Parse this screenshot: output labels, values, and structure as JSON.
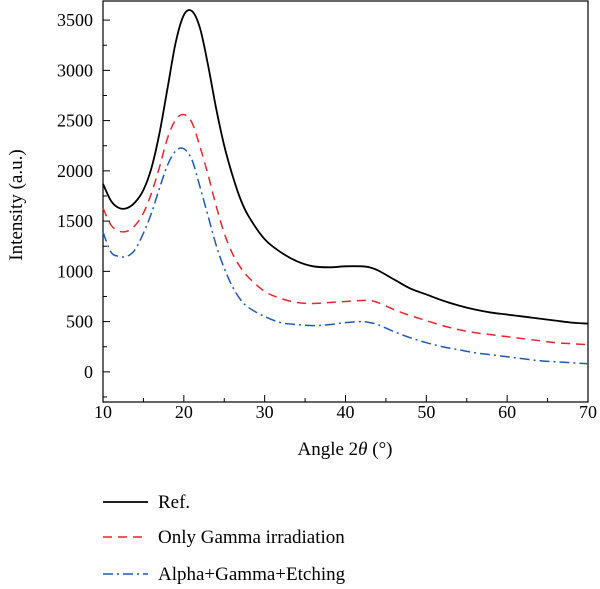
{
  "chart_data": {
    "type": "line",
    "xlabel_prefix": "Angle 2",
    "xlabel_symbol": "θ",
    "xlabel_suffix": " (°)",
    "ylabel": "Intensity (a.u.)",
    "xlim": [
      10,
      70
    ],
    "ylim": [
      -300,
      3700
    ],
    "x_ticks": [
      10,
      20,
      30,
      40,
      50,
      60,
      70
    ],
    "y_ticks": [
      0,
      500,
      1000,
      1500,
      2000,
      2500,
      3000,
      3500
    ],
    "grid": false,
    "legend_position": "below-plot",
    "series": [
      {
        "name": "Ref.",
        "color": "#000000",
        "dash": "solid",
        "x": [
          10,
          11,
          12,
          13,
          14,
          15,
          16,
          17,
          18,
          19,
          20,
          21,
          22,
          23,
          24,
          25,
          26,
          27,
          28,
          30,
          32,
          34,
          36,
          38,
          40,
          42,
          43,
          44,
          46,
          48,
          50,
          52,
          54,
          56,
          58,
          60,
          62,
          64,
          66,
          68,
          70
        ],
        "y": [
          1870,
          1700,
          1630,
          1630,
          1690,
          1810,
          2030,
          2380,
          2830,
          3280,
          3550,
          3590,
          3420,
          3050,
          2620,
          2250,
          1960,
          1720,
          1550,
          1320,
          1190,
          1100,
          1050,
          1040,
          1050,
          1050,
          1040,
          1010,
          920,
          830,
          770,
          710,
          660,
          620,
          590,
          570,
          550,
          530,
          510,
          490,
          480
        ]
      },
      {
        "name": "Only Gamma irradiation",
        "color": "#e8252a",
        "dash": "dashed",
        "x": [
          10,
          11,
          12,
          13,
          14,
          15,
          16,
          17,
          18,
          19,
          20,
          21,
          22,
          23,
          24,
          25,
          26,
          27,
          28,
          30,
          32,
          34,
          36,
          38,
          40,
          42,
          43,
          44,
          46,
          48,
          50,
          52,
          54,
          56,
          58,
          60,
          62,
          64,
          66,
          68,
          70
        ],
        "y": [
          1630,
          1460,
          1400,
          1400,
          1460,
          1580,
          1780,
          2040,
          2330,
          2510,
          2560,
          2480,
          2240,
          1960,
          1650,
          1380,
          1180,
          1040,
          940,
          800,
          730,
          690,
          680,
          690,
          700,
          710,
          710,
          690,
          620,
          560,
          510,
          460,
          420,
          390,
          370,
          350,
          330,
          310,
          290,
          280,
          270
        ]
      },
      {
        "name": "Alpha+Gamma+Etching",
        "color": "#1a5bb8",
        "dash": "dashdot",
        "x": [
          10,
          11,
          12,
          13,
          14,
          15,
          16,
          17,
          18,
          19,
          20,
          21,
          22,
          23,
          24,
          25,
          26,
          27,
          28,
          30,
          32,
          34,
          36,
          38,
          40,
          42,
          43,
          44,
          46,
          48,
          50,
          52,
          54,
          56,
          58,
          60,
          62,
          64,
          66,
          68,
          70
        ],
        "y": [
          1390,
          1190,
          1150,
          1150,
          1220,
          1380,
          1580,
          1830,
          2060,
          2200,
          2220,
          2110,
          1840,
          1550,
          1260,
          1030,
          850,
          720,
          640,
          550,
          490,
          470,
          460,
          470,
          490,
          500,
          490,
          470,
          400,
          340,
          290,
          250,
          220,
          190,
          170,
          150,
          130,
          110,
          100,
          90,
          80
        ]
      }
    ]
  }
}
